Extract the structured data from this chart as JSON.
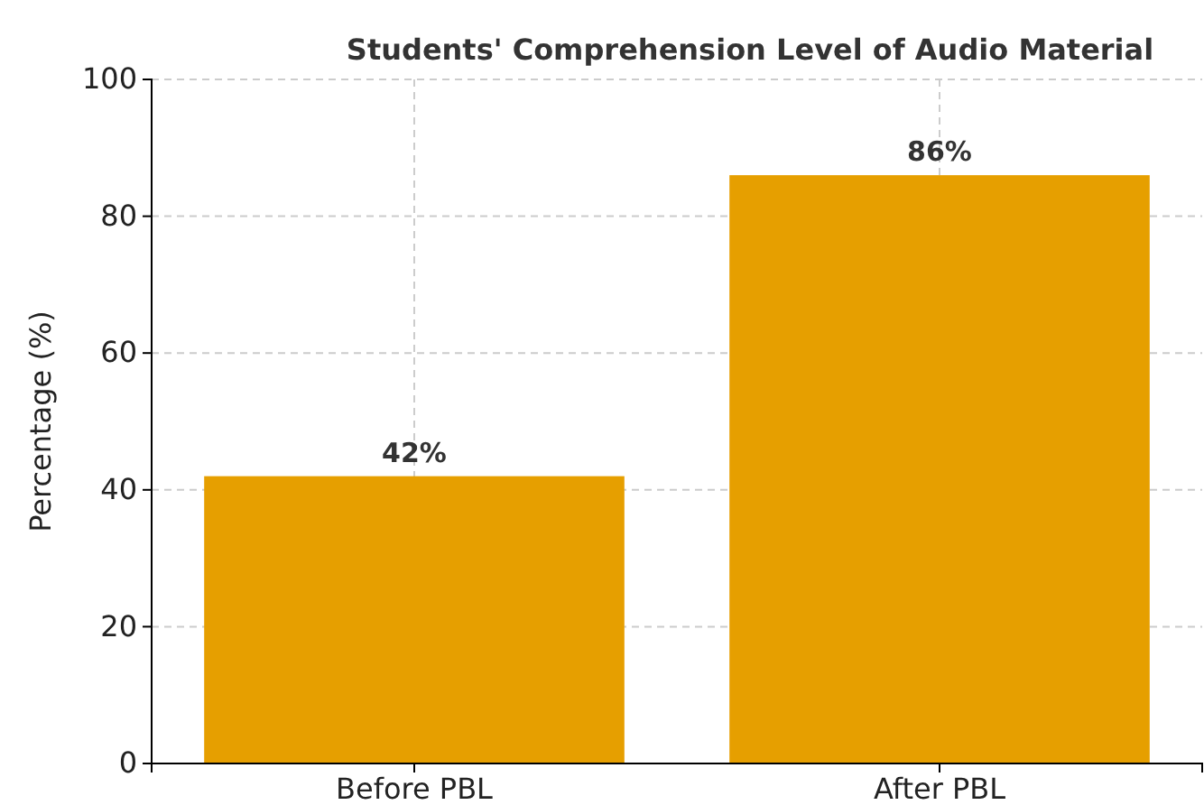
{
  "chart_data": {
    "type": "bar",
    "title": "Students' Comprehension Level of Audio Material",
    "ylabel": "Percentage (%)",
    "categories": [
      "Before PBL",
      "After PBL"
    ],
    "values": [
      42,
      86
    ],
    "color": "#e69f00",
    "value_labels": [
      "42%",
      "86%"
    ],
    "ylim": [
      0,
      100
    ],
    "yticks": [
      0,
      20,
      40,
      60,
      80,
      100
    ],
    "grid": true
  }
}
